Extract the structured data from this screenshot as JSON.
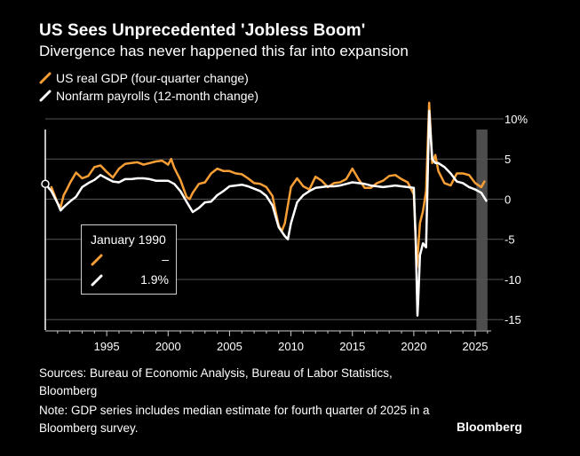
{
  "title": "US Sees Unprecedented 'Jobless Boom'",
  "subtitle": "Divergence has never happened this far into expansion",
  "legend": {
    "gdp": "US real GDP (four-quarter change)",
    "payrolls": "Nonfarm payrolls (12-month change)"
  },
  "tooltip": {
    "date": "January 1990",
    "gdp_value": "–",
    "payrolls_value": "1.9%"
  },
  "footer": {
    "sources": "Sources: Bureau of Economic Analysis, Bureau of Labor Statistics, Bloomberg",
    "note": "Note: GDP series includes median estimate for fourth quarter of 2025 in a Bloomberg survey.",
    "brand": "Bloomberg"
  },
  "colors": {
    "background": "#000000",
    "gdp": "#f79e35",
    "payrolls": "#ffffff",
    "grid": "#555555",
    "shade": "#4d4d4d"
  },
  "chart_data": {
    "type": "line",
    "title": "US Sees Unprecedented 'Jobless Boom'",
    "xlabel": "",
    "ylabel": "",
    "xlim": [
      1990,
      2026.3
    ],
    "ylim": [
      -16.3,
      10
    ],
    "x_ticks": [
      1995,
      2000,
      2005,
      2010,
      2015,
      2020,
      2025
    ],
    "y_ticks": [
      10,
      5,
      0,
      -5,
      -10,
      -15
    ],
    "y_tick_labels": [
      "10%",
      "5",
      "0",
      "-5",
      "-10",
      "-15"
    ],
    "shaded_region": [
      2025.1,
      2026.0
    ],
    "hover_x": 1990,
    "series": [
      {
        "name": "US real GDP (four-quarter change)",
        "color": "#f79e35",
        "x": [
          1990.5,
          1990.75,
          1991.0,
          1991.25,
          1991.5,
          1991.75,
          1992.0,
          1992.5,
          1993.0,
          1993.5,
          1994.0,
          1994.5,
          1995.0,
          1995.5,
          1996.0,
          1996.5,
          1997.0,
          1997.5,
          1998.0,
          1998.5,
          1999.0,
          1999.5,
          2000.0,
          2000.25,
          2000.5,
          2001.0,
          2001.5,
          2001.75,
          2002.0,
          2002.5,
          2003.0,
          2003.5,
          2004.0,
          2004.5,
          2005.0,
          2005.5,
          2006.0,
          2006.5,
          2007.0,
          2007.5,
          2008.0,
          2008.5,
          2008.75,
          2009.0,
          2009.25,
          2009.5,
          2010.0,
          2010.5,
          2011.0,
          2011.5,
          2012.0,
          2012.5,
          2013.0,
          2013.5,
          2014.0,
          2014.5,
          2015.0,
          2015.5,
          2016.0,
          2016.5,
          2017.0,
          2017.5,
          2018.0,
          2018.5,
          2019.0,
          2019.5,
          2020.0,
          2020.25,
          2020.5,
          2020.75,
          2021.0,
          2021.25,
          2021.5,
          2021.75,
          2022.0,
          2022.5,
          2023.0,
          2023.5,
          2024.0,
          2024.5,
          2025.0,
          2025.5,
          2025.75
        ],
        "y": [
          1.5,
          0.5,
          -0.5,
          -1.0,
          0.5,
          1.2,
          2.0,
          3.3,
          2.6,
          2.9,
          4.0,
          4.2,
          3.4,
          2.7,
          3.8,
          4.4,
          4.5,
          4.6,
          4.3,
          4.5,
          4.7,
          4.8,
          4.3,
          5.0,
          3.9,
          2.4,
          0.3,
          0.0,
          0.8,
          1.9,
          2.1,
          3.2,
          3.8,
          3.5,
          3.5,
          3.2,
          3.1,
          2.6,
          2.0,
          1.9,
          1.5,
          0.4,
          -1.5,
          -3.3,
          -4.0,
          -3.0,
          1.5,
          2.6,
          1.6,
          1.2,
          2.8,
          2.3,
          1.5,
          2.0,
          2.1,
          2.5,
          3.8,
          2.5,
          1.4,
          1.4,
          2.0,
          2.3,
          2.9,
          3.0,
          2.5,
          2.1,
          0.6,
          -8.5,
          -3.0,
          -1.5,
          1.0,
          12.0,
          4.5,
          5.5,
          3.5,
          2.0,
          1.7,
          3.2,
          3.2,
          3.0,
          2.0,
          1.5,
          2.2
        ]
      },
      {
        "name": "Nonfarm payrolls (12-month change)",
        "color": "#ffffff",
        "x": [
          1990.0,
          1990.5,
          1991.0,
          1991.25,
          1991.5,
          1992.0,
          1992.5,
          1993.0,
          1993.5,
          1994.0,
          1994.5,
          1995.0,
          1995.5,
          1996.0,
          1996.5,
          1997.0,
          1997.5,
          1998.0,
          1998.5,
          1999.0,
          1999.5,
          2000.0,
          2000.5,
          2001.0,
          2001.5,
          2002.0,
          2002.5,
          2003.0,
          2003.5,
          2004.0,
          2004.5,
          2005.0,
          2005.5,
          2006.0,
          2006.5,
          2007.0,
          2007.5,
          2008.0,
          2008.5,
          2009.0,
          2009.5,
          2009.75,
          2010.0,
          2010.5,
          2011.0,
          2011.5,
          2012.0,
          2012.5,
          2013.0,
          2013.5,
          2014.0,
          2014.5,
          2015.0,
          2015.5,
          2016.0,
          2016.5,
          2017.0,
          2017.5,
          2018.0,
          2018.5,
          2019.0,
          2019.5,
          2020.0,
          2020.15,
          2020.3,
          2020.35,
          2020.5,
          2020.75,
          2021.0,
          2021.25,
          2021.5,
          2021.75,
          2022.0,
          2022.5,
          2023.0,
          2023.5,
          2024.0,
          2024.5,
          2025.0,
          2025.5,
          2025.9
        ],
        "y": [
          1.9,
          1.0,
          -0.5,
          -1.4,
          -1.0,
          -0.3,
          0.3,
          1.5,
          2.0,
          2.4,
          3.0,
          2.6,
          2.2,
          2.1,
          2.5,
          2.5,
          2.6,
          2.6,
          2.5,
          2.3,
          2.3,
          2.3,
          1.9,
          1.0,
          -0.3,
          -1.6,
          -1.1,
          -0.4,
          -0.3,
          0.5,
          1.0,
          1.6,
          1.7,
          1.8,
          1.6,
          1.3,
          1.0,
          0.4,
          -0.8,
          -3.5,
          -4.6,
          -5.0,
          -3.0,
          -0.4,
          0.5,
          1.0,
          1.4,
          1.5,
          1.6,
          1.6,
          1.7,
          1.9,
          2.1,
          2.0,
          1.9,
          1.7,
          1.6,
          1.5,
          1.6,
          1.7,
          1.6,
          1.5,
          1.4,
          -5.0,
          -14.5,
          -13.0,
          -7.0,
          -5.5,
          -6.0,
          11.0,
          5.0,
          4.5,
          4.5,
          4.0,
          3.2,
          2.2,
          2.0,
          1.5,
          1.2,
          0.8,
          -0.2
        ]
      }
    ]
  }
}
